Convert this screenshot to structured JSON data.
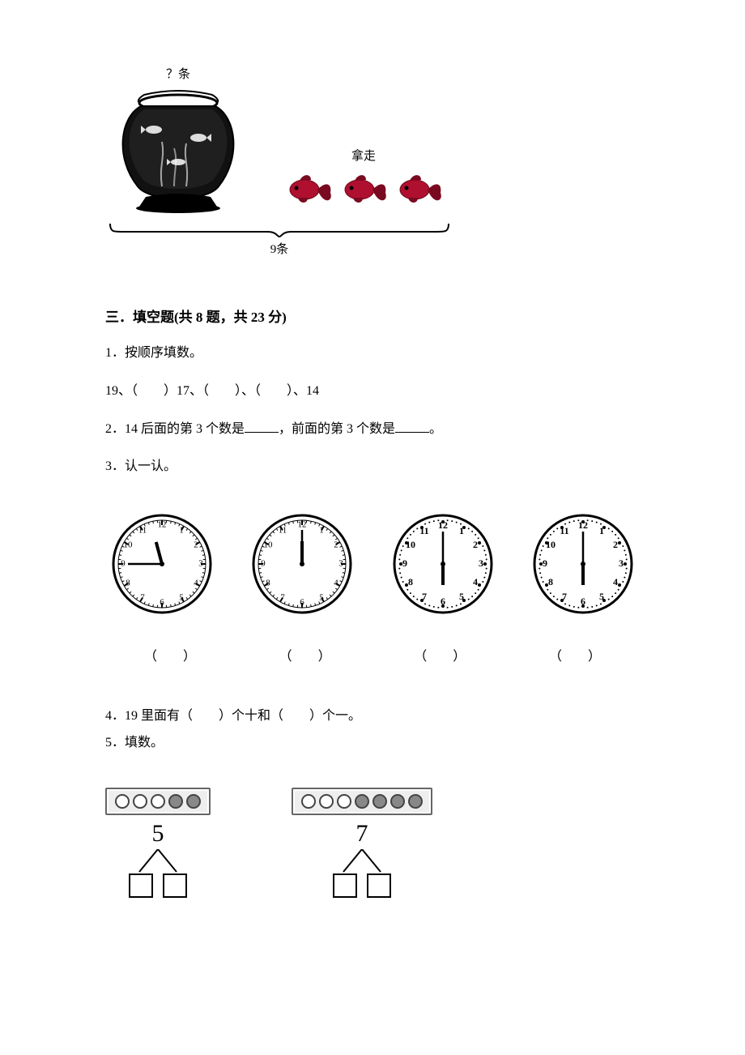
{
  "fishbowl": {
    "top_label": "？条",
    "takeaway_label": "拿走",
    "fish_count": 3,
    "bottom_label": "9条"
  },
  "section3": {
    "header": "三．填空题(共 8 题，共 23 分)",
    "q1": {
      "prefix": "1．按顺序填数。",
      "line": "19、（　　）17、（　　）、（　　）、14"
    },
    "q2": {
      "line_a": "2．14 后面的第 3 个数是",
      "line_b": "，前面的第 3 个数是",
      "line_c": "。"
    },
    "q3_label": "3．认一认。",
    "clocks": [
      {
        "hour_angle": -15,
        "minute_angle": 270,
        "style": "plain"
      },
      {
        "hour_angle": 0,
        "minute_angle": 0,
        "style": "plain"
      },
      {
        "hour_angle": 180,
        "minute_angle": 0,
        "style": "dotted"
      },
      {
        "hour_angle": 180,
        "minute_angle": 0,
        "style": "dotted"
      }
    ],
    "clock_answer": "（　　）",
    "q4": "4．19 里面有（　　）个十和（　　）个一。",
    "q5_label": "5．填数。",
    "split1": {
      "number": "5",
      "dots": [
        "open",
        "open",
        "open",
        "filled",
        "filled"
      ]
    },
    "split2": {
      "number": "7",
      "dots": [
        "open",
        "open",
        "open",
        "filled",
        "filled",
        "filled",
        "filled"
      ]
    }
  },
  "colors": {
    "text": "#000000",
    "bg": "#ffffff",
    "fish_body": "#b01030",
    "fish_dark": "#7a0a20",
    "bowl_dark": "#222222"
  }
}
